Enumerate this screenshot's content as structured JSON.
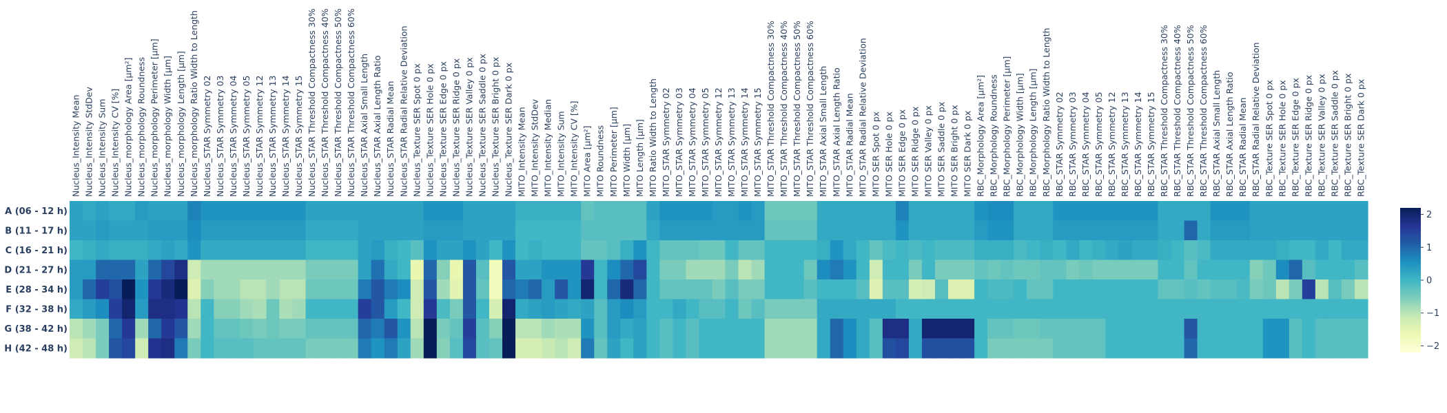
{
  "chart_data": {
    "type": "heatmap",
    "title": "",
    "xlabel": "",
    "ylabel": "",
    "rows": [
      "A (06 - 12 h)",
      "B (11 - 17 h)",
      "C (16 - 21 h)",
      "D (21 - 27 h)",
      "E (28 - 34 h)",
      "F (32 - 38 h)",
      "G (38 - 42 h)",
      "H (42 - 48 h)"
    ],
    "columns": [
      "Nucleus_Intensity Mean",
      "Nucleus_Intensity StdDev",
      "Nucleus_Intensity Sum",
      "Nucleus_Intensity CV [%]",
      "Nucleus_morphology Area [µm²]",
      "Nucleus_morphology Roundness",
      "Nucleus_morphology Perimeter [µm]",
      "Nucleus_morphology Width [µm]",
      "Nucleus_morphology Length [µm]",
      "Nucleus_morphology Ratio Width to Length",
      "Nucleus_STAR Symmetry 02",
      "Nucleus_STAR Symmetry 03",
      "Nucleus_STAR Symmetry 04",
      "Nucleus_STAR Symmetry 05",
      "Nucleus_STAR Symmetry 12",
      "Nucleus_STAR Symmetry 13",
      "Nucleus_STAR Symmetry 14",
      "Nucleus_STAR Symmetry 15",
      "Nucleus_STAR Threshold Compactness 30%",
      "Nucleus_STAR Threshold Compactness 40%",
      "Nucleus_STAR Threshold Compactness 50%",
      "Nucleus_STAR Threshold Compactness 60%",
      "Nucleus_STAR Axial Small Length",
      "Nucleus_STAR Axial Length Ratio",
      "Nucleus_STAR Radial Mean",
      "Nucleus_STAR Radial Relative Deviation",
      "Nucleus_Texture SER Spot 0 px",
      "Nucleus_Texture SER Hole 0 px",
      "Nucleus_Texture SER Edge 0 px",
      "Nucleus_Texture SER Ridge 0 px",
      "Nucleus_Texture SER Valley 0 px",
      "Nucleus_Texture SER Saddle 0 px",
      "Nucleus_Texture SER Bright 0 px",
      "Nucleus_Texture SER Dark 0 px",
      "MITO_Intensity Mean",
      "MITO_Intensity StdDev",
      "MITO_Intensity Median",
      "MITO_Intensity Sum",
      "MITO_Intensity CV [%]",
      "MITO Area [µm²]",
      "MITO Roundness",
      "MITO Perimeter [µm]",
      "MITO Width [µm]",
      "MITO Length [µm]",
      "MITO Ratio Width to Length",
      "MITO_STAR Symmetry 02",
      "MITO_STAR Symmetry 03",
      "MITO_STAR Symmetry 04",
      "MITO_STAR Symmetry 05",
      "MITO_STAR Symmetry 12",
      "MITO_STAR Symmetry 13",
      "MITO_STAR Symmetry 14",
      "MITO_STAR Symmetry 15",
      "MITO_STAR Threshold Compactness 30%",
      "MITO_STAR Threshold Compactness 40%",
      "MITO_STAR Threshold Compactness 50%",
      "MITO_STAR Threshold Compactness 60%",
      "MITO_STAR Axial Small Length",
      "MITO_STAR Axial Length Ratio",
      "MITO_STAR Radial Mean",
      "MITO_STAR Radial Relative Deviation",
      "MITO SER Spot 0 px",
      "MITO SER Hole 0 px",
      "MITO SER Edge 0 px",
      "MITO SER Ridge 0 px",
      "MITO SER Valley 0 px",
      "MITO SER Saddle 0 px",
      "MITO SER Bright 0 px",
      "MITO SER Dark 0 px",
      "RBC_Morphology Area [µm²]",
      "RBC_Morphology Roundness",
      "RBC_Morphology Perimeter [µm]",
      "RBC_Morphology Width [µm]",
      "RBC_Morphology Length [µm]",
      "RBC_Morphology Ratio Width to Length",
      "RBC_STAR Symmetry 02",
      "RBC_STAR Symmetry 03",
      "RBC_STAR Symmetry 04",
      "RBC_STAR Symmetry 05",
      "RBC_STAR Symmetry 12",
      "RBC_STAR Symmetry 13",
      "RBC_STAR Symmetry 14",
      "RBC_STAR Symmetry 15",
      "RBC_STAR Threshold Compactness 30%",
      "RBC_STAR Threshold Compactness 40%",
      "RBC_STAR Threshold Compactness 50%",
      "RBC_STAR Threshold Compactness 60%",
      "RBC_STAR Axial Small Length",
      "RBC_STAR Axial Length Ratio",
      "RBC_STAR Radial Mean",
      "RBC_STAR Radial Relative Deviation",
      "RBC_Texture SER Spot 0 px",
      "RBC_Texture SER Hole 0 px",
      "RBC_Texture SER Edge 0 px",
      "RBC_Texture SER Ridge 0 px",
      "RBC_Texture SER Valley 0 px",
      "RBC_Texture SER Saddle 0 px",
      "RBC_Texture SER Bright 0 px",
      "RBC_Texture SER Dark 0 px"
    ],
    "colorscale": {
      "name": "YlGnBu",
      "zmin": -2.2,
      "zmax": 2.2,
      "ticks": [
        2,
        1,
        0,
        -1,
        -2
      ],
      "tick_labels": [
        "2",
        "1",
        "0",
        "−1",
        "−2"
      ],
      "stops": [
        "#ffffd9",
        "#edf8b1",
        "#c7e9b4",
        "#7fcdbb",
        "#41b6c4",
        "#1d91c0",
        "#225ea8",
        "#253494",
        "#081d58"
      ]
    },
    "values": [
      [
        0.3,
        0.2,
        0.3,
        0.2,
        0.2,
        0.4,
        0.3,
        0.3,
        0.3,
        0.7,
        0.5,
        0.5,
        0.5,
        0.5,
        0.5,
        0.5,
        0.5,
        0.5,
        0.3,
        0.3,
        0.3,
        0.3,
        0.3,
        0.3,
        0.3,
        0.3,
        0.3,
        0.5,
        0.5,
        0.5,
        0.3,
        0.3,
        0.3,
        0.3,
        0.1,
        0.1,
        0.1,
        0.1,
        0.1,
        -0.3,
        -0.2,
        -0.2,
        -0.2,
        -0.2,
        0.3,
        0.5,
        0.5,
        0.5,
        0.5,
        0.4,
        0.4,
        0.5,
        0.4,
        -0.4,
        -0.4,
        -0.4,
        -0.4,
        0.2,
        0.2,
        0.2,
        0.2,
        0.2,
        0.2,
        0.7,
        0.2,
        0.2,
        0.2,
        0.2,
        0.2,
        0.5,
        0.6,
        0.6,
        0.2,
        0.2,
        0.2,
        0.5,
        0.5,
        0.5,
        0.5,
        0.5,
        0.5,
        0.5,
        0.5,
        0.2,
        0.2,
        0.2,
        0.2,
        0.5,
        0.5,
        0.5,
        0.3,
        0.3,
        0.3,
        0.3,
        0.3,
        0.3,
        0.3,
        0.3,
        0.3
      ],
      [
        0.3,
        0.3,
        0.4,
        0.3,
        0.3,
        0.3,
        0.4,
        0.4,
        0.4,
        0.6,
        0.4,
        0.4,
        0.4,
        0.4,
        0.4,
        0.4,
        0.4,
        0.4,
        0.2,
        0.2,
        0.2,
        0.2,
        0.3,
        0.3,
        0.3,
        0.3,
        0.3,
        0.4,
        0.4,
        0.4,
        0.3,
        0.3,
        0.3,
        0.3,
        0.0,
        0.0,
        0.0,
        0.0,
        0.0,
        -0.2,
        -0.2,
        -0.2,
        -0.2,
        -0.2,
        0.2,
        0.4,
        0.4,
        0.4,
        0.4,
        0.4,
        0.4,
        0.4,
        0.4,
        -0.3,
        -0.3,
        -0.3,
        -0.3,
        0.2,
        0.2,
        0.2,
        0.2,
        0.2,
        0.2,
        0.5,
        0.2,
        0.2,
        0.2,
        0.2,
        0.2,
        0.4,
        0.5,
        0.5,
        0.2,
        0.2,
        0.2,
        0.4,
        0.4,
        0.4,
        0.4,
        0.4,
        0.4,
        0.4,
        0.4,
        0.2,
        0.2,
        1.0,
        0.2,
        0.4,
        0.4,
        0.4,
        0.3,
        0.3,
        0.3,
        0.3,
        0.3,
        0.3,
        0.3,
        0.3,
        0.3
      ],
      [
        0.0,
        0.1,
        0.2,
        0.1,
        0.1,
        0.1,
        0.2,
        0.3,
        0.2,
        0.5,
        0.2,
        0.2,
        0.2,
        0.2,
        0.2,
        0.2,
        0.2,
        0.2,
        0.0,
        0.0,
        0.0,
        0.0,
        0.3,
        0.4,
        0.1,
        0.0,
        -0.2,
        0.5,
        0.3,
        0.3,
        0.5,
        0.3,
        0.0,
        0.5,
        0.0,
        0.1,
        0.0,
        0.0,
        0.0,
        -0.3,
        -0.3,
        -0.2,
        0.1,
        0.5,
        0.0,
        -0.3,
        -0.3,
        -0.3,
        -0.4,
        -0.4,
        0.0,
        -0.3,
        -0.3,
        0.0,
        0.0,
        0.0,
        0.0,
        0.1,
        0.5,
        0.2,
        0.0,
        -0.3,
        -0.1,
        0.0,
        -0.1,
        0.0,
        -0.1,
        -0.1,
        -0.1,
        0.1,
        0.1,
        0.1,
        -0.1,
        0.0,
        0.1,
        0.0,
        0.2,
        0.0,
        0.1,
        0.2,
        0.3,
        0.2,
        0.2,
        0.1,
        0.0,
        -0.2,
        -0.1,
        0.2,
        0.2,
        0.2,
        0.2,
        0.2,
        0.1,
        0.0,
        0.0,
        0.2,
        0.0,
        0.2,
        0.2
      ],
      [
        0.4,
        0.4,
        1.0,
        1.0,
        1.0,
        0.3,
        1.0,
        1.4,
        1.8,
        -1.2,
        -0.8,
        -0.8,
        -0.8,
        -0.8,
        -0.8,
        -0.8,
        -0.8,
        -0.8,
        -0.5,
        -0.5,
        -0.5,
        -0.5,
        0.3,
        0.9,
        0.2,
        0.0,
        -1.6,
        1.0,
        -0.6,
        -1.6,
        1.2,
        -0.2,
        -1.8,
        1.2,
        0.3,
        0.3,
        0.5,
        0.5,
        0.5,
        1.6,
        0.0,
        0.6,
        1.0,
        1.4,
        0.0,
        -0.5,
        -0.5,
        -0.8,
        -0.8,
        -0.8,
        -0.5,
        -1.0,
        -0.8,
        0.0,
        0.0,
        0.0,
        -0.4,
        0.6,
        0.8,
        0.5,
        0.0,
        -1.2,
        0.0,
        0.0,
        -0.5,
        0.0,
        -0.5,
        -0.5,
        -0.5,
        -0.3,
        -0.4,
        -0.3,
        -0.4,
        -0.4,
        -0.3,
        -0.3,
        -0.5,
        -0.4,
        -0.5,
        -0.5,
        -0.5,
        -0.5,
        -0.5,
        0.0,
        0.0,
        -0.3,
        0.0,
        0.0,
        0.0,
        0.0,
        -0.6,
        -0.4,
        0.6,
        1.0,
        -0.2,
        0.0,
        0.0,
        0.0,
        -0.2
      ],
      [
        0.4,
        1.0,
        1.5,
        1.3,
        2.2,
        0.5,
        1.6,
        1.9,
        2.2,
        -1.4,
        -0.6,
        -0.8,
        -0.8,
        -1.0,
        -1.0,
        -0.8,
        -1.0,
        -1.0,
        -0.4,
        -0.4,
        -0.4,
        -0.4,
        0.8,
        1.2,
        0.8,
        0.6,
        -1.2,
        1.2,
        -0.8,
        -1.5,
        1.2,
        -0.3,
        -1.8,
        1.0,
        0.8,
        1.0,
        0.4,
        1.2,
        0.5,
        2.0,
        0.0,
        1.0,
        1.9,
        1.0,
        0.0,
        -0.3,
        -0.3,
        -0.3,
        -0.3,
        -0.5,
        -0.2,
        -0.5,
        -0.5,
        0.0,
        0.0,
        0.0,
        -0.2,
        0.0,
        0.0,
        0.0,
        -0.2,
        -1.4,
        -0.2,
        -0.2,
        -1.3,
        -1.2,
        -0.2,
        -1.4,
        -1.4,
        0.0,
        -0.1,
        -0.1,
        0.0,
        -0.3,
        -0.3,
        0.0,
        0.0,
        0.0,
        0.0,
        0.0,
        0.0,
        0.0,
        0.0,
        -0.3,
        -0.3,
        -0.2,
        -0.3,
        -0.2,
        -0.2,
        -0.1,
        -0.5,
        -0.4,
        -1.0,
        -0.5,
        1.5,
        -1.0,
        -0.2,
        -0.5,
        -1.0
      ],
      [
        0.2,
        0.4,
        0.6,
        1.5,
        2.0,
        0.4,
        1.8,
        1.8,
        1.7,
        -1.0,
        0.0,
        -0.6,
        -0.6,
        -0.8,
        -0.9,
        -0.4,
        -0.9,
        -0.8,
        0.0,
        0.0,
        0.0,
        0.0,
        1.5,
        1.2,
        0.4,
        0.0,
        -1.2,
        1.6,
        -0.1,
        -0.5,
        1.2,
        0.0,
        -1.3,
        2.0,
        0.2,
        0.3,
        0.4,
        0.3,
        0.2,
        0.3,
        -0.2,
        0.4,
        0.6,
        0.4,
        0.0,
        0.0,
        0.2,
        0.0,
        -0.2,
        -0.2,
        0.0,
        -0.4,
        -0.2,
        -0.5,
        -0.5,
        -0.5,
        -0.5,
        0.2,
        0.2,
        0.2,
        0.2,
        0.2,
        0.2,
        0.0,
        0.0,
        0.0,
        0.0,
        0.0,
        0.0,
        0.0,
        0.0,
        0.0,
        0.0,
        0.0,
        0.0,
        0.0,
        0.0,
        0.0,
        0.0,
        0.0,
        0.0,
        0.0,
        0.0,
        0.0,
        0.0,
        0.0,
        0.0,
        0.0,
        0.0,
        0.0,
        0.0,
        0.0,
        0.0,
        0.0,
        0.0,
        0.0,
        0.0,
        0.0,
        0.0
      ],
      [
        -1.0,
        -0.8,
        -0.5,
        1.0,
        1.6,
        -0.8,
        1.0,
        1.6,
        1.2,
        -0.8,
        0.0,
        -0.3,
        -0.3,
        -0.4,
        -0.5,
        -0.4,
        -0.5,
        -0.5,
        -0.3,
        -0.3,
        -0.3,
        -0.3,
        1.0,
        0.8,
        1.2,
        0.5,
        -1.0,
        2.2,
        -0.5,
        -0.3,
        1.5,
        -0.2,
        -0.6,
        2.2,
        -1.0,
        -1.0,
        -0.8,
        -0.9,
        -0.9,
        0.5,
        -0.2,
        0.4,
        0.2,
        0.3,
        0.0,
        -0.2,
        0.0,
        -0.2,
        0.0,
        0.0,
        0.0,
        0.0,
        0.0,
        -0.8,
        -0.8,
        -0.8,
        -0.8,
        0.2,
        1.0,
        0.6,
        0.2,
        -0.2,
        1.8,
        1.8,
        0.2,
        2.0,
        2.0,
        2.0,
        2.0,
        0.0,
        -0.3,
        -0.3,
        -0.4,
        -0.4,
        -0.3,
        -0.3,
        -0.3,
        -0.3,
        -0.3,
        0.0,
        0.0,
        0.0,
        0.0,
        0.0,
        0.0,
        1.2,
        0.0,
        0.0,
        0.0,
        0.0,
        0.0,
        0.5,
        0.5,
        -0.2,
        0.0,
        -0.2,
        -0.2,
        -0.2,
        -0.2
      ],
      [
        -1.2,
        -1.0,
        -0.5,
        1.2,
        1.4,
        -1.2,
        1.7,
        1.8,
        0.8,
        -0.5,
        0.0,
        -0.2,
        -0.2,
        -0.2,
        -0.3,
        -0.3,
        -0.3,
        -0.3,
        -0.5,
        -0.5,
        -0.5,
        -0.5,
        0.8,
        0.5,
        0.8,
        0.3,
        -0.8,
        2.2,
        -0.6,
        -0.2,
        1.4,
        -0.2,
        -0.3,
        2.2,
        -1.3,
        -1.3,
        -1.1,
        -1.0,
        -1.2,
        0.8,
        -0.3,
        0.3,
        0.0,
        0.3,
        0.0,
        -0.2,
        0.0,
        -0.2,
        0.0,
        0.0,
        0.0,
        0.0,
        0.0,
        -0.8,
        -0.8,
        -0.8,
        -0.8,
        0.2,
        1.0,
        0.6,
        0.2,
        -0.2,
        1.3,
        1.4,
        0.2,
        1.3,
        1.3,
        1.3,
        1.3,
        0.0,
        -0.5,
        -0.5,
        -0.5,
        -0.5,
        -0.5,
        -0.3,
        -0.3,
        -0.3,
        -0.3,
        0.0,
        0.0,
        0.0,
        0.0,
        0.0,
        0.0,
        1.0,
        0.0,
        0.0,
        0.0,
        0.0,
        0.0,
        0.5,
        0.5,
        -0.2,
        0.0,
        -0.2,
        -0.2,
        -0.2,
        -0.2
      ]
    ]
  }
}
